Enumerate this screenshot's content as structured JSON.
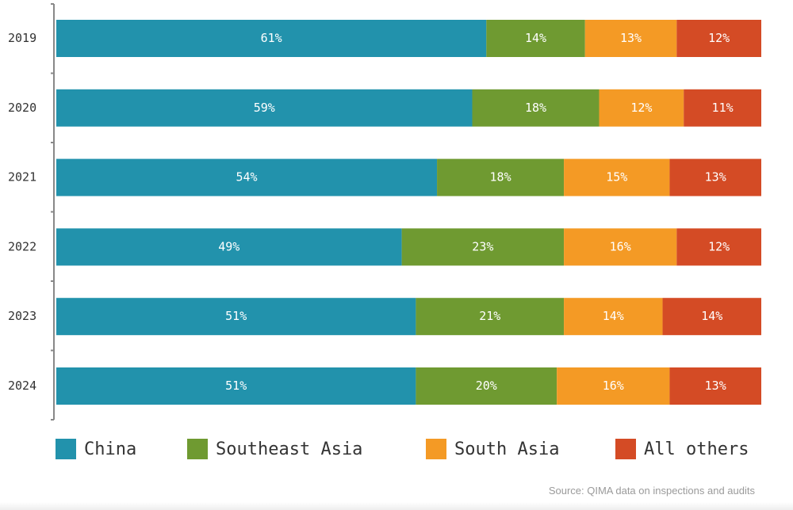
{
  "chart_data": {
    "type": "bar",
    "orientation": "horizontal",
    "stacked": true,
    "categories": [
      "2019",
      "2020",
      "2021",
      "2022",
      "2023",
      "2024"
    ],
    "series": [
      {
        "name": "China",
        "color": "#2292AC",
        "values": [
          61,
          59,
          54,
          49,
          51,
          51
        ],
        "labels": [
          "61%",
          "59%",
          "54%",
          "49%",
          "51%",
          "51%"
        ]
      },
      {
        "name": "Southeast Asia",
        "color": "#6F9A31",
        "values": [
          14,
          18,
          18,
          23,
          21,
          20
        ],
        "labels": [
          "14%",
          "18%",
          "18%",
          "23%",
          "21%",
          "20%"
        ]
      },
      {
        "name": "South Asia",
        "color": "#F49A25",
        "values": [
          13,
          12,
          15,
          16,
          14,
          16
        ],
        "labels": [
          "13%",
          "12%",
          "15%",
          "16%",
          "14%",
          "16%"
        ]
      },
      {
        "name": "All others",
        "color": "#D44B25",
        "values": [
          12,
          11,
          13,
          12,
          14,
          13
        ],
        "labels": [
          "12%",
          "11%",
          "13%",
          "12%",
          "14%",
          "13%"
        ]
      }
    ],
    "xlim": [
      0,
      100
    ],
    "grid": false,
    "legend_position": "bottom"
  },
  "source": "Source: QIMA data on inspections and audits"
}
